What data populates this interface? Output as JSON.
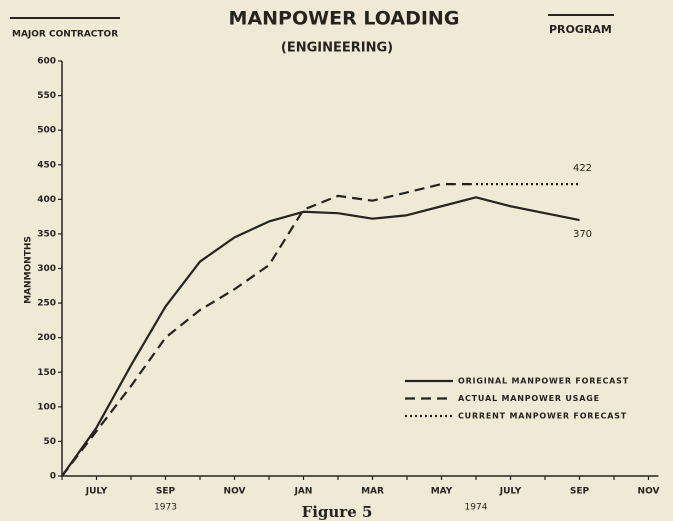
{
  "chart_data": {
    "type": "line",
    "title": "MANPOWER LOADING",
    "subtitle": "(ENGINEERING)",
    "header_left": "MAJOR CONTRACTOR",
    "header_right": "PROGRAM",
    "ylabel": "MANMONTHS",
    "caption": "Figure 5",
    "categories": [
      null,
      "JULY",
      null,
      "SEP",
      null,
      "NOV",
      null,
      "JAN",
      null,
      "MAR",
      null,
      "MAY",
      null,
      "JULY",
      null,
      "SEP",
      null,
      "NOV"
    ],
    "year_labels": [
      {
        "text": "1973",
        "x": 3
      },
      {
        "text": "1974",
        "x": 12
      }
    ],
    "ylim": [
      0,
      600
    ],
    "yticks": [
      0,
      50,
      100,
      150,
      200,
      250,
      300,
      350,
      400,
      450,
      500,
      550,
      600
    ],
    "series": [
      {
        "name": "ORIGINAL MANPOWER FORECAST",
        "color": "#262420",
        "dash": "solid",
        "values": [
          0,
          70,
          160,
          245,
          310,
          345,
          368,
          382,
          380,
          372,
          377,
          390,
          403,
          390,
          380,
          370,
          null,
          null
        ]
      },
      {
        "name": "ACTUAL MANPOWER USAGE",
        "color": "#262420",
        "dash": "dashed",
        "values": [
          0,
          65,
          130,
          200,
          240,
          270,
          305,
          385,
          405,
          398,
          410,
          422,
          422,
          null,
          null,
          null,
          null,
          null
        ]
      },
      {
        "name": "CURRENT MANPOWER FORECAST",
        "color": "#262420",
        "dash": "dotted",
        "values": [
          null,
          null,
          null,
          null,
          null,
          null,
          null,
          null,
          null,
          null,
          null,
          null,
          422,
          422,
          422,
          422,
          null,
          null
        ]
      }
    ],
    "annotations": [
      {
        "text": "422",
        "x": 15,
        "y": 422
      },
      {
        "text": "370",
        "x": 15,
        "y": 370
      }
    ]
  }
}
